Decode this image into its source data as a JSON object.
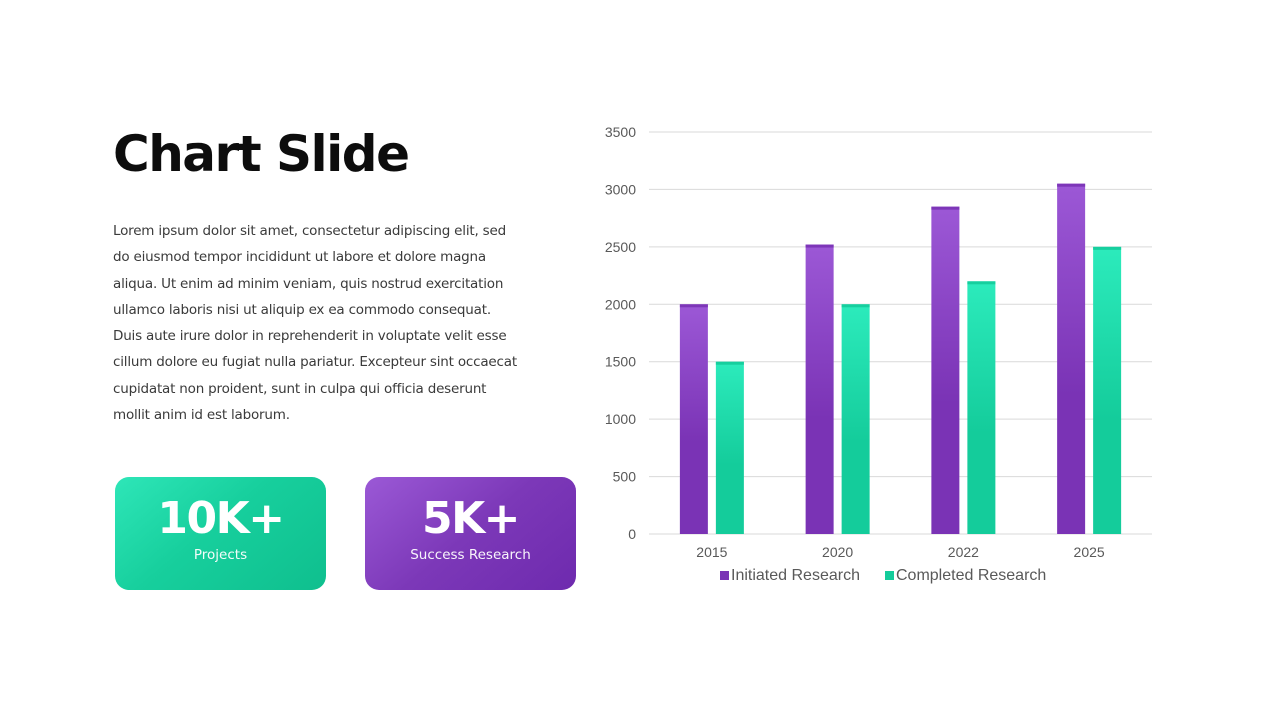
{
  "slide": {
    "title": "Chart Slide",
    "body": "Lorem ipsum dolor sit amet, consectetur adipiscing elit, sed do eiusmod tempor incididunt ut labore et dolore magna aliqua. Ut enim ad minim veniam, quis nostrud exercitation ullamco laboris nisi ut aliquip ex ea commodo consequat. Duis aute irure dolor in reprehenderit in voluptate velit esse cillum dolore eu fugiat nulla pariatur. Excepteur sint occaecat cupidatat non proident, sunt in culpa qui officia deserunt mollit anim id est laborum."
  },
  "stats": [
    {
      "value": "10K+",
      "label": "Projects"
    },
    {
      "value": "5K+",
      "label": "Success Research"
    }
  ],
  "colors": {
    "initiated": "#7a33b5",
    "initiated_light": "#9c58d6",
    "completed": "#14cc9b",
    "completed_light": "#2cebbc",
    "grid": "#d9d9d9",
    "tick_text": "#595959",
    "title_text": "#0d0d0d"
  },
  "chart_data": {
    "type": "bar",
    "categories": [
      "2015",
      "2020",
      "2022",
      "2025"
    ],
    "series": [
      {
        "name": "Initiated Research",
        "values": [
          2000,
          2520,
          2850,
          3050
        ]
      },
      {
        "name": "Completed Research",
        "values": [
          1500,
          2000,
          2200,
          2500
        ]
      }
    ],
    "ylim": [
      0,
      3500
    ],
    "yticks": [
      "0",
      "500",
      "1000",
      "1500",
      "2000",
      "2500",
      "3000",
      "3500"
    ],
    "grid": true,
    "legend_position": "bottom"
  }
}
